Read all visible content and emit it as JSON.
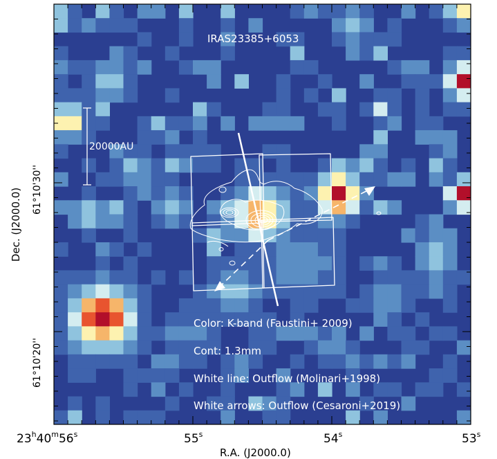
{
  "title": "IRAS23385+6053",
  "scale_bar_label": "20000AU",
  "legend": [
    "Color: K-band (Faustini+ 2009)",
    "Cont: 1.3mm",
    "White line: Outflow (Molinari+1998)",
    "White arrows: Outflow (Cesaroni+2019)"
  ],
  "axes": {
    "xlabel": "R.A. (J2000.0)",
    "ylabel": "Dec. (J2000.0)",
    "x_ticks": [
      {
        "h": "23",
        "m": "40",
        "s": "56",
        "full": true
      },
      {
        "s": "55"
      },
      {
        "s": "54"
      },
      {
        "s": "53"
      }
    ],
    "y_ticks": [
      "61°10'30''",
      "61°10'20''"
    ]
  },
  "colors": {
    "background": "#2b3f91",
    "overlay": "#ffffff",
    "colormap": [
      "#2b3f91",
      "#3f63ad",
      "#5b8ec4",
      "#8fc3de",
      "#d4edf0",
      "#fdf2b0",
      "#f6b56a",
      "#e8542f",
      "#b20f2a"
    ]
  },
  "image_grid": {
    "cols": 30,
    "rows": 30,
    "seed": 7
  }
}
